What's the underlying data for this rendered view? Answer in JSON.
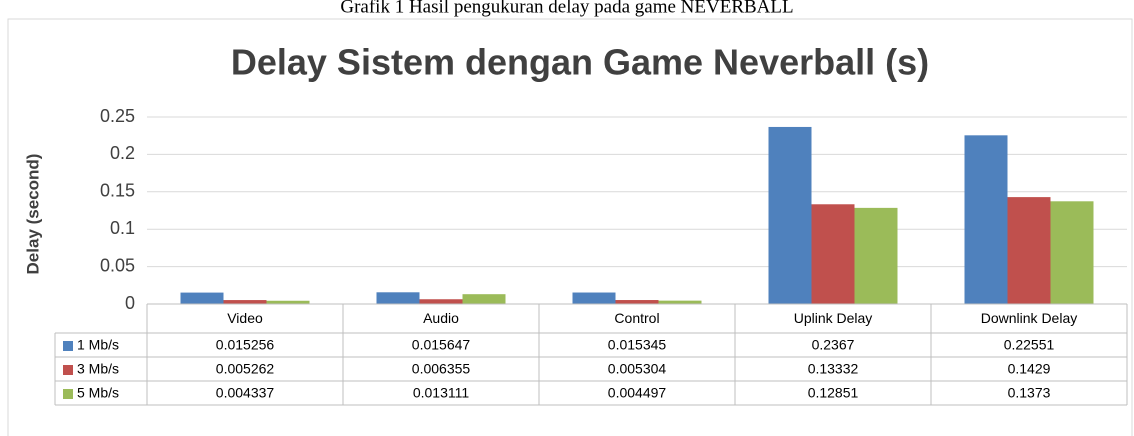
{
  "caption": "Grafik 1 Hasil pengukuran delay pada game NEVERBALL",
  "chart_data": {
    "type": "bar",
    "title": "Delay Sistem dengan Game Neverball (s)",
    "y_label": "Delay (second)",
    "categories": [
      "Video",
      "Audio",
      "Control",
      "Uplink Delay",
      "Downlink Delay"
    ],
    "series": [
      {
        "name": "1 Mb/s",
        "color": "#4f81bd",
        "values": [
          0.015256,
          0.015647,
          0.015345,
          0.2367,
          0.22551
        ]
      },
      {
        "name": "3 Mb/s",
        "color": "#c0504d",
        "values": [
          0.005262,
          0.006355,
          0.005304,
          0.13332,
          0.1429
        ]
      },
      {
        "name": "5 Mb/s",
        "color": "#9bbb59",
        "values": [
          0.004337,
          0.013111,
          0.004497,
          0.12851,
          0.1373
        ]
      }
    ],
    "ylim": [
      0,
      0.25
    ],
    "yticks": [
      0,
      0.05,
      0.1,
      0.15,
      0.2,
      0.25
    ],
    "grid": true,
    "data_table": true
  }
}
